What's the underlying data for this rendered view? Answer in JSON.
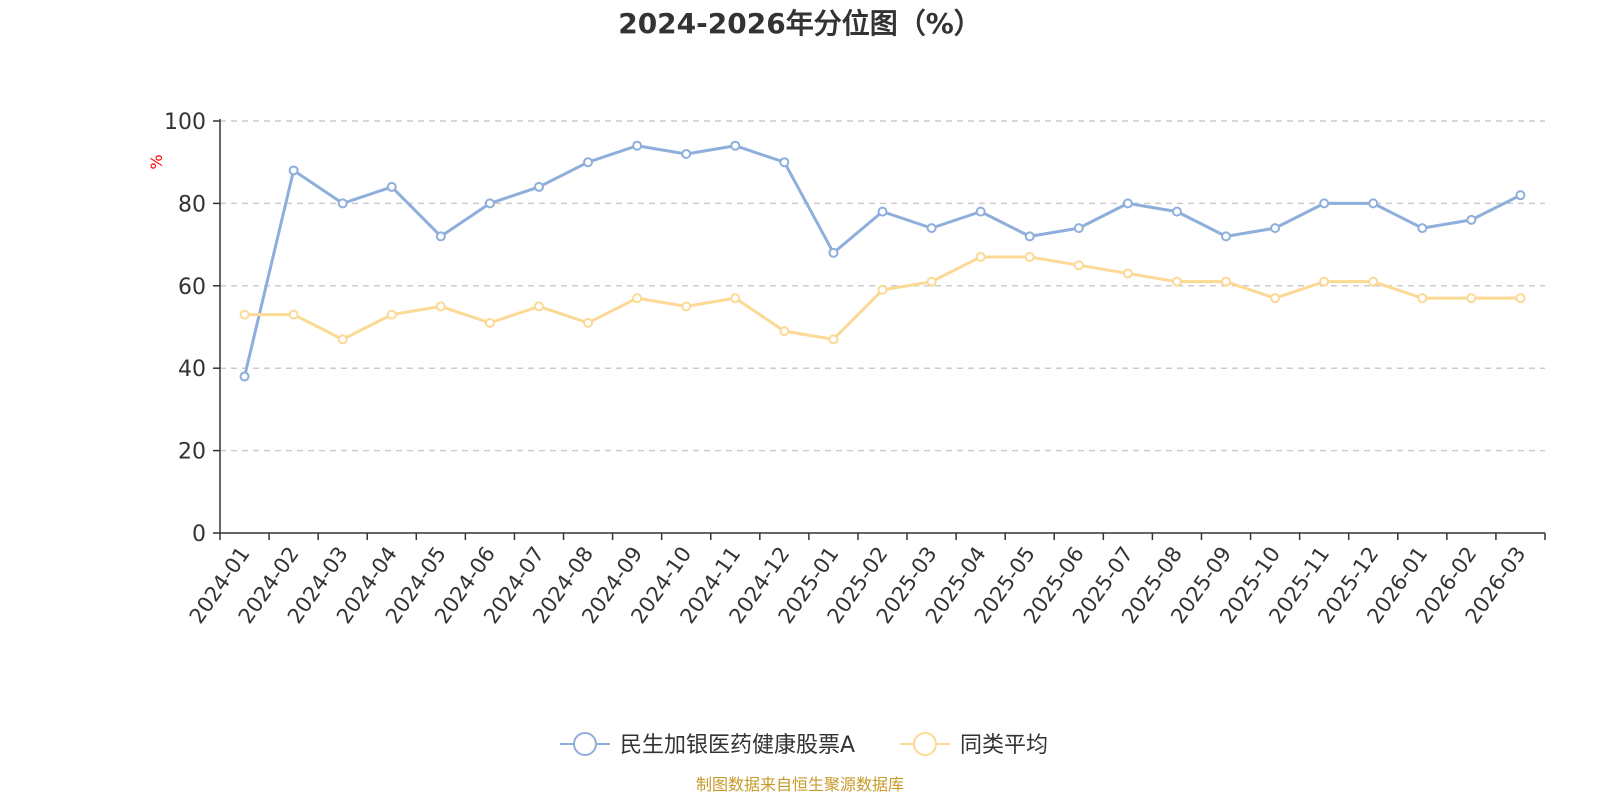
{
  "chart_data": {
    "type": "line",
    "title": "2024-2026年分位图（%）",
    "ylabel": "%",
    "ylim": [
      0,
      100
    ],
    "yticks": [
      0,
      20,
      40,
      60,
      80,
      100
    ],
    "grid": true,
    "legend_position": "bottom-center",
    "categories": [
      "2024-01",
      "2024-02",
      "2024-03",
      "2024-04",
      "2024-05",
      "2024-06",
      "2024-07",
      "2024-08",
      "2024-09",
      "2024-10",
      "2024-11",
      "2024-12",
      "2025-01",
      "2025-02",
      "2025-03",
      "2025-04",
      "2025-05",
      "2025-06",
      "2025-07",
      "2025-08",
      "2025-09",
      "2025-10",
      "2025-11",
      "2025-12",
      "2026-01",
      "2026-02",
      "2026-03"
    ],
    "series": [
      {
        "name": "民生加银医药健康股票A",
        "color": "#8eaedb",
        "values": [
          38,
          88,
          80,
          84,
          72,
          80,
          84,
          90,
          94,
          92,
          94,
          90,
          68,
          78,
          74,
          78,
          72,
          74,
          80,
          78,
          72,
          74,
          80,
          80,
          74,
          76,
          82
        ]
      },
      {
        "name": "同类平均",
        "color": "#fcd995",
        "values": [
          53,
          53,
          47,
          53,
          55,
          51,
          55,
          51,
          57,
          55,
          57,
          49,
          47,
          59,
          61,
          67,
          67,
          65,
          63,
          61,
          61,
          57,
          61,
          61,
          57,
          57,
          57
        ]
      }
    ],
    "source": "制图数据来自恒生聚源数据库"
  }
}
